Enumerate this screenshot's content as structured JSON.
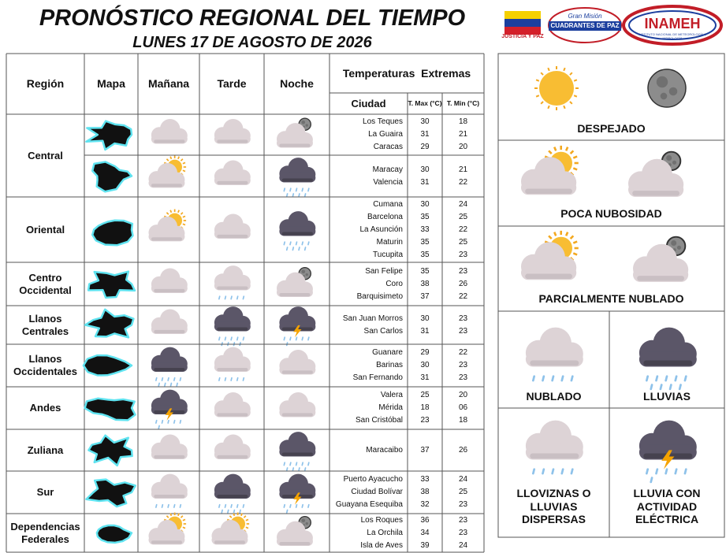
{
  "header": {
    "title": "PRONÓSTICO REGIONAL DEL TIEMPO",
    "date": "LUNES 17 DE AGOSTO DE 2026"
  },
  "logos": {
    "ministry": "JUSTICIA Y PAZ",
    "mission_top": "Gran Misión",
    "mission": "CUADRANTES DE PAZ",
    "institute": "INAMEH",
    "institute_full": "INSTITUTO NACIONAL DE METEOROLOGÍA E HIDROLOGÍA"
  },
  "table": {
    "columns": [
      "Región",
      "Mapa",
      "Mañana",
      "Tarde",
      "Noche"
    ],
    "temperatures": "Temperaturas  Extremas",
    "subcolumns": [
      "Ciudad",
      "T. Max (°C)",
      "T. Min (°C)"
    ],
    "regions": [
      {
        "name": "Central",
        "rows": [
          [
            [
              "Los Teques",
              "30",
              "18"
            ],
            [
              "La Guaira",
              "31",
              "21"
            ],
            [
              "Caracas",
              "29",
              "20"
            ]
          ],
          [
            [
              "Maracay",
              "30",
              "21"
            ],
            [
              "Valencia",
              "31",
              "22"
            ]
          ]
        ]
      },
      {
        "name": "Oriental",
        "rows": [
          [
            [
              "Cumana",
              "30",
              "24"
            ],
            [
              "Barcelona",
              "35",
              "25"
            ],
            [
              "La Asunción",
              "33",
              "22"
            ],
            [
              "Maturin",
              "35",
              "25"
            ],
            [
              "Tucupita",
              "35",
              "23"
            ]
          ]
        ]
      },
      {
        "name": "Centro Occidental",
        "rows": [
          [
            [
              "San Felipe",
              "35",
              "23"
            ],
            [
              "Coro",
              "38",
              "26"
            ],
            [
              "Barquisimeto",
              "37",
              "22"
            ]
          ]
        ]
      },
      {
        "name": "Llanos Centrales",
        "rows": [
          [
            [
              "San Juan Morros",
              "30",
              "23"
            ],
            [
              "San Carlos",
              "31",
              "23"
            ]
          ]
        ]
      },
      {
        "name": "Llanos Occidentales",
        "rows": [
          [
            [
              "Guanare",
              "29",
              "22"
            ],
            [
              "Barinas",
              "30",
              "23"
            ],
            [
              "San Fernando",
              "31",
              "23"
            ]
          ]
        ]
      },
      {
        "name": "Andes",
        "rows": [
          [
            [
              "Valera",
              "25",
              "20"
            ],
            [
              "Mérida",
              "18",
              "06"
            ],
            [
              "San Cristóbal",
              "23",
              "18"
            ]
          ]
        ]
      },
      {
        "name": "Zuliana",
        "rows": [
          [
            [
              "Maracaibo",
              "37",
              "26"
            ]
          ]
        ]
      },
      {
        "name": "Sur",
        "rows": [
          [
            [
              "Puerto Ayacucho",
              "33",
              "24"
            ],
            [
              "Ciudad Bolívar",
              "38",
              "25"
            ],
            [
              "Guayana Esequiba",
              "32",
              "23"
            ]
          ]
        ]
      },
      {
        "name": "Dependencias Federales",
        "rows": [
          [
            [
              "Los Roques",
              "36",
              "23"
            ],
            [
              "La Orchila",
              "34",
              "23"
            ],
            [
              "Isla de Aves",
              "39",
              "24"
            ]
          ]
        ]
      }
    ]
  },
  "legend": [
    "DESPEJADO",
    "POCA NUBOSIDAD",
    "PARCIALMENTE NUBLADO",
    "NUBLADO",
    "LLUVIAS",
    "LLOVIZNAS O LLUVIAS DISPERSAS",
    "LLUVIA CON ACTIVIDAD ELÉCTRICA"
  ]
}
